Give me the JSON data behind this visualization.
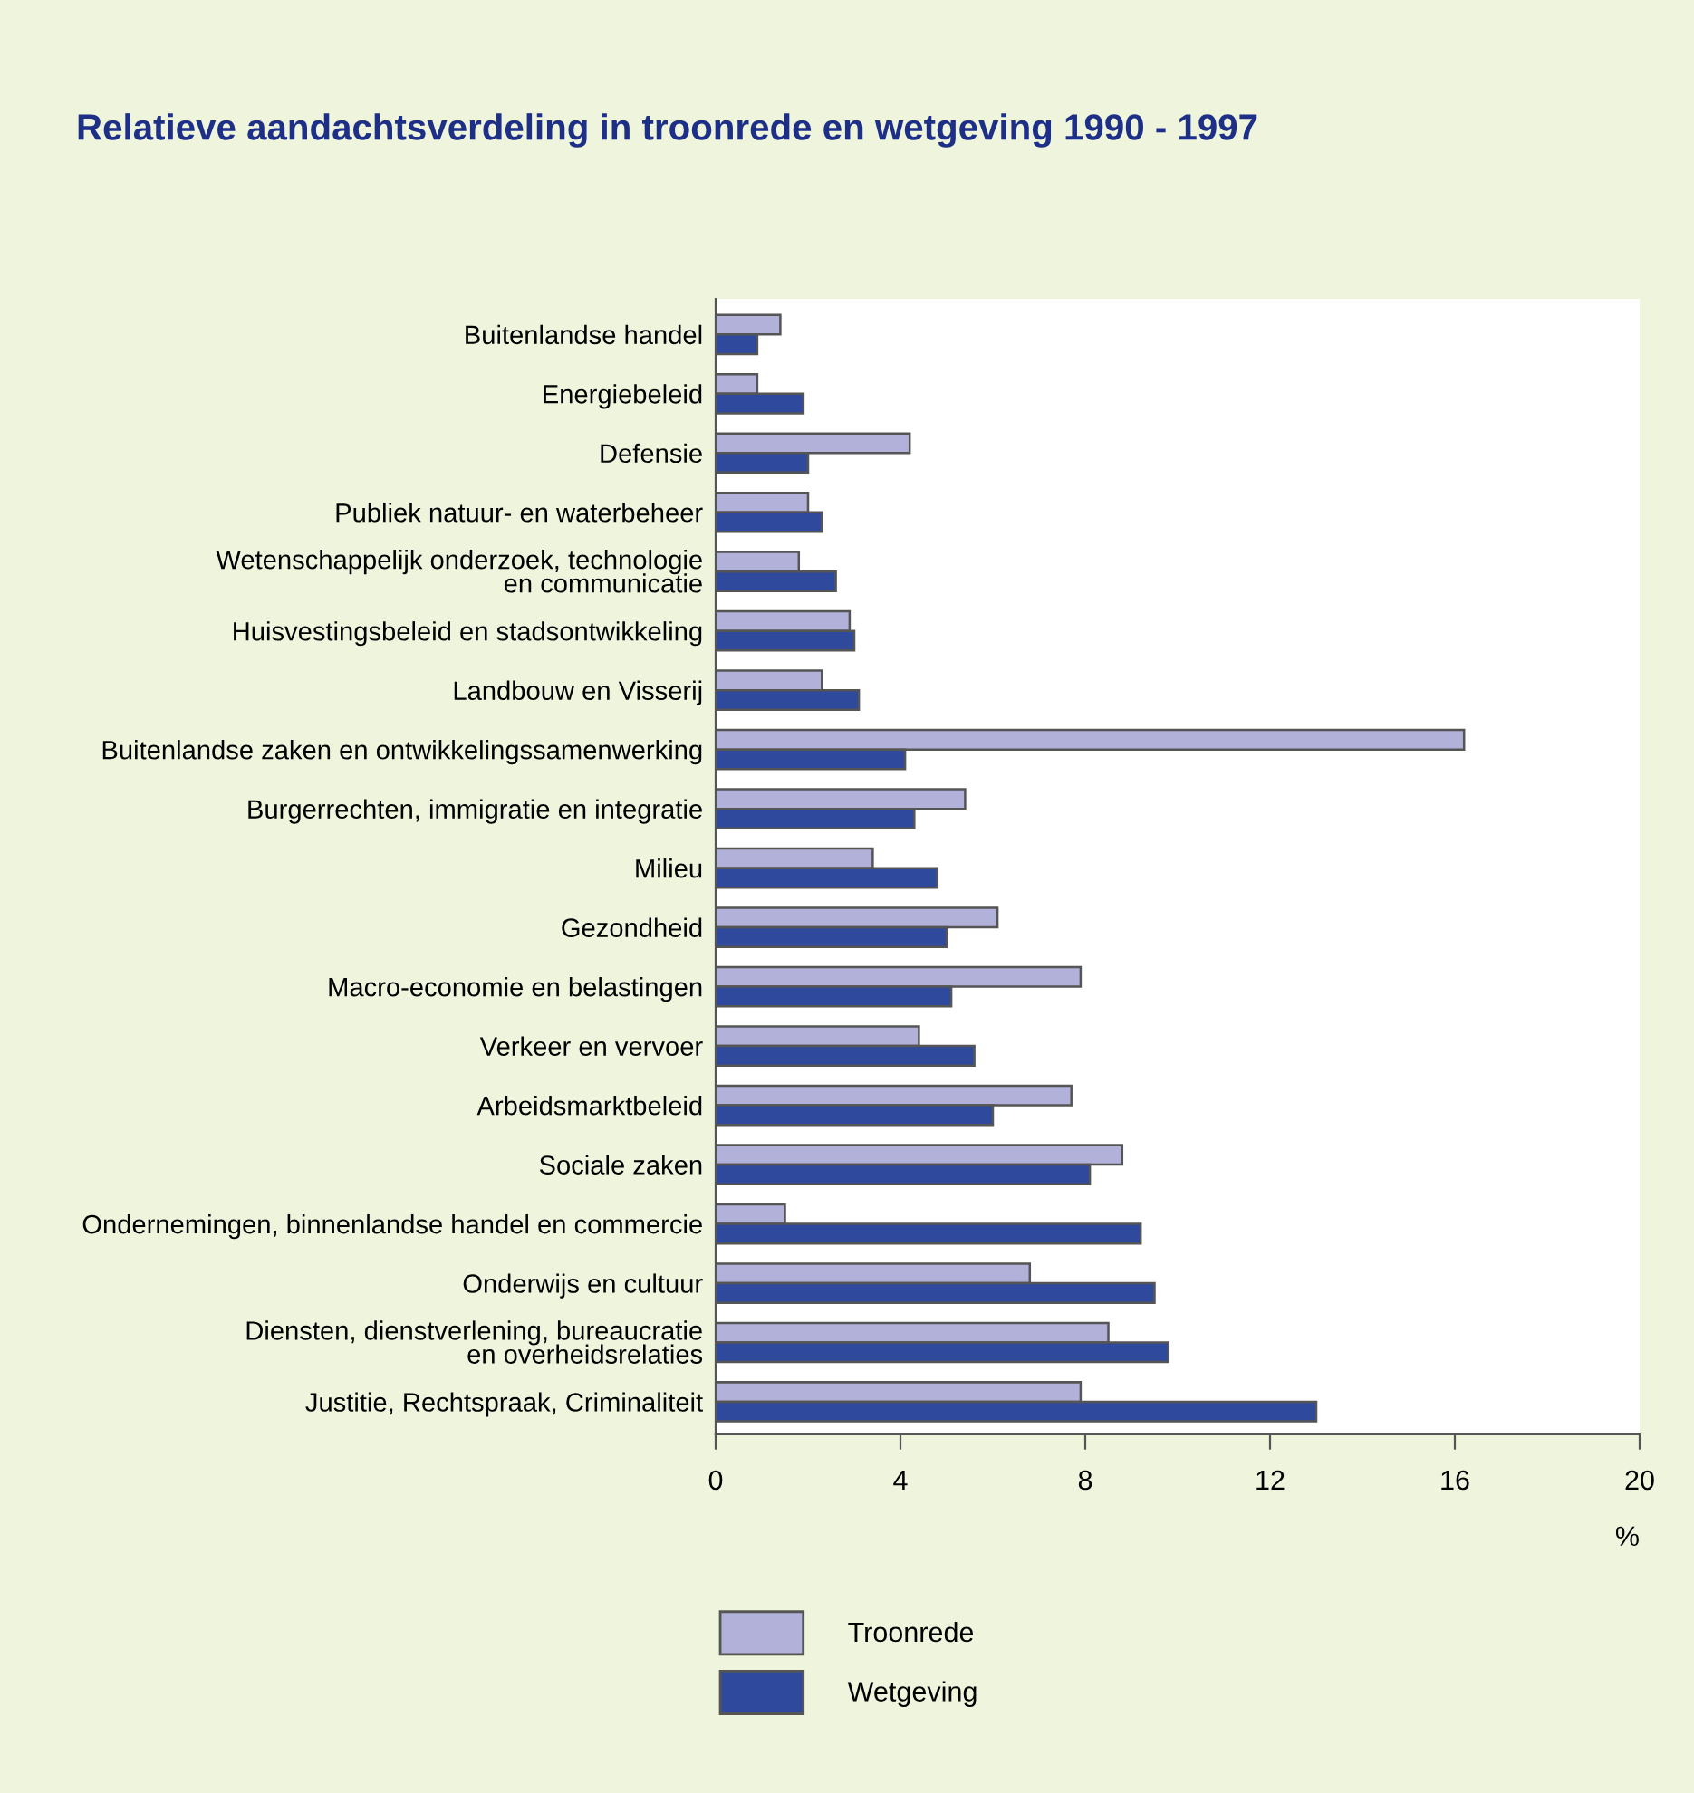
{
  "chart_data": {
    "type": "bar",
    "orientation": "horizontal",
    "title": "Relatieve aandachtsverdeling in troonrede en wetgeving 1990 - 1997",
    "xlabel": "%",
    "categories": [
      "Buitenlandse handel",
      "Energiebeleid",
      "Defensie",
      "Publiek natuur- en waterbeheer",
      "Wetenschappelijk onderzoek, technologie\nen communicatie",
      "Huisvestingsbeleid en stadsontwikkeling",
      "Landbouw en Visserij",
      "Buitenlandse zaken en ontwikkelingssamenwerking",
      "Burgerrechten, immigratie en integratie",
      "Milieu",
      "Gezondheid",
      "Macro-economie en belastingen",
      "Verkeer en vervoer",
      "Arbeidsmarktbeleid",
      "Sociale zaken",
      "Ondernemingen, binnenlandse handel en commercie",
      "Onderwijs en cultuur",
      "Diensten, dienstverlening, bureaucratie\nen overheidsrelaties",
      "Justitie, Rechtspraak, Criminaliteit"
    ],
    "series": [
      {
        "name": "Troonrede",
        "color": "#b1b1d9",
        "values": [
          1.4,
          0.9,
          4.2,
          2.0,
          1.8,
          2.9,
          2.3,
          16.2,
          5.4,
          3.4,
          6.1,
          7.9,
          4.4,
          7.7,
          8.8,
          1.5,
          6.8,
          8.5,
          7.9
        ]
      },
      {
        "name": "Wetgeving",
        "color": "#2f4a9c",
        "values": [
          0.9,
          1.9,
          2.0,
          2.3,
          2.6,
          3.0,
          3.1,
          4.1,
          4.3,
          4.8,
          5.0,
          5.1,
          5.6,
          6.0,
          8.1,
          9.2,
          9.5,
          9.8,
          13.0
        ]
      }
    ],
    "xlim": [
      0,
      20
    ],
    "xticks": [
      0,
      4,
      8,
      12,
      16,
      20
    ],
    "grid": false,
    "legend": "bottom"
  }
}
